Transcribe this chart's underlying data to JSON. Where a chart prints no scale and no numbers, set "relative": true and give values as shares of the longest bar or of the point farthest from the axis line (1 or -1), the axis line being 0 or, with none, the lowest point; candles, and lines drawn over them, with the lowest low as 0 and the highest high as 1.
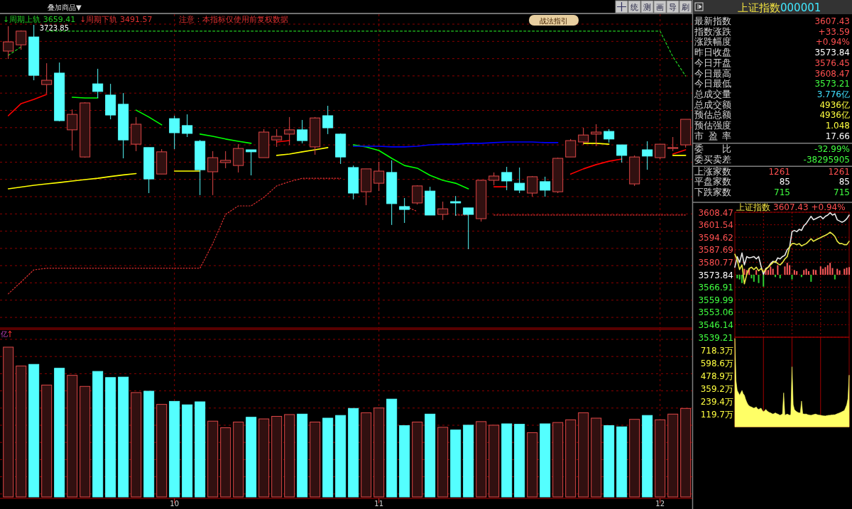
{
  "chart_data": [
    {
      "type": "candlestick",
      "relative": true,
      "grid": true,
      "legend": "top left",
      "tick_labels": false,
      "categories": [
        null,
        null,
        null,
        null,
        null,
        null,
        null,
        null,
        null,
        null,
        null,
        null,
        null,
        "10",
        null,
        null,
        null,
        null,
        null,
        null,
        null,
        null,
        null,
        null,
        null,
        null,
        null,
        null,
        null,
        "11",
        null,
        null,
        null,
        null,
        null,
        null,
        null,
        null,
        null,
        null,
        null,
        null,
        null,
        null,
        null,
        null,
        null,
        null,
        null,
        null,
        null,
        "12",
        null,
        null
      ],
      "ohlc": [
        [
          0.883,
          0.994,
          0.848,
          0.924
        ],
        [
          0.911,
          0.975,
          0.889,
          0.972
        ],
        [
          0.946,
          1,
          0.753,
          0.775
        ],
        [
          0.734,
          0.829,
          0.693,
          0.753
        ],
        [
          0.785,
          0.832,
          0.57,
          0.573
        ],
        [
          0.532,
          0.623,
          0.44,
          0.601
        ],
        [
          0.411,
          0.655,
          0.408,
          0.652
        ],
        [
          0.737,
          0.804,
          0.674,
          0.703
        ],
        [
          0.687,
          0.737,
          0.579,
          0.598
        ],
        [
          0.646,
          0.696,
          0.405,
          0.487
        ],
        [
          0.468,
          0.589,
          0.437,
          0.557
        ],
        [
          0.453,
          0.453,
          0.25,
          0.313
        ],
        [
          0.335,
          0.446,
          0.335,
          0.434
        ],
        [
          0.582,
          0.595,
          0.446,
          0.519
        ],
        [
          0.551,
          0.601,
          0.5,
          0.516
        ],
        [
          0.481,
          0.487,
          0.241,
          0.354
        ],
        [
          0.345,
          0.437,
          0.241,
          0.408
        ],
        [
          0.386,
          0.437,
          0.361,
          0.396
        ],
        [
          0.373,
          0.468,
          0.342,
          0.449
        ],
        [
          0.443,
          0.443,
          0.329,
          0.434
        ],
        [
          0.408,
          0.535,
          0.408,
          0.522
        ],
        [
          0.487,
          0.535,
          0.456,
          0.503
        ],
        [
          0.513,
          0.589,
          0.465,
          0.532
        ],
        [
          0.532,
          0.576,
          0.472,
          0.484
        ],
        [
          0.456,
          0.589,
          0.421,
          0.585
        ],
        [
          0.595,
          0.639,
          0.513,
          0.541
        ],
        [
          0.513,
          0.516,
          0.38,
          0.411
        ],
        [
          0.364,
          0.373,
          0.222,
          0.25
        ],
        [
          0.256,
          0.358,
          0.196,
          0.358
        ],
        [
          0.294,
          0.389,
          0.259,
          0.348
        ],
        [
          0.342,
          0.396,
          0.108,
          0.203
        ],
        [
          0.19,
          0.228,
          0.117,
          0.177
        ],
        [
          0.206,
          0.285,
          0.199,
          0.282
        ],
        [
          0.259,
          0.278,
          0.152,
          0.152
        ],
        [
          0.155,
          0.212,
          0.13,
          0.18
        ],
        [
          0.212,
          0.237,
          0.149,
          0.206
        ],
        [
          0.184,
          0.184,
          0,
          0.155
        ],
        [
          0.136,
          0.31,
          0.123,
          0.307
        ],
        [
          0.307,
          0.342,
          0.285,
          0.326
        ],
        [
          0.342,
          0.367,
          0.263,
          0.304
        ],
        [
          0.294,
          0.364,
          0.25,
          0.263
        ],
        [
          0.25,
          0.326,
          0.234,
          0.323
        ],
        [
          0.301,
          0.323,
          0.234,
          0.263
        ],
        [
          0.256,
          0.408,
          0.25,
          0.405
        ],
        [
          0.411,
          0.491,
          0.411,
          0.484
        ],
        [
          0.478,
          0.541,
          0.465,
          0.509
        ],
        [
          0.513,
          0.557,
          0.459,
          0.522
        ],
        [
          0.525,
          0.535,
          0.475,
          0.491
        ],
        [
          0.465,
          0.465,
          0.386,
          0.418
        ],
        [
          0.291,
          0.418,
          0.282,
          0.411
        ],
        [
          0.443,
          0.481,
          0.354,
          0.415
        ],
        [
          0.408,
          0.468,
          0.402,
          0.468
        ],
        [
          0.449,
          0.5,
          0.437,
          0.453
        ],
        [
          0.465,
          0.579,
          0.453,
          0.579
        ]
      ],
      "colors": [
        "#e04848",
        "#e04848",
        "#54ffff",
        "#e04848",
        "#54ffff",
        "#e04848",
        "#e04848",
        "#54ffff",
        "#54ffff",
        "#54ffff",
        "#e04848",
        "#54ffff",
        "#e04848",
        "#54ffff",
        "#54ffff",
        "#54ffff",
        "#e04848",
        "#e04848",
        "#e04848",
        "#54ffff",
        "#e04848",
        "#e04848",
        "#e04848",
        "#54ffff",
        "#e04848",
        "#54ffff",
        "#54ffff",
        "#54ffff",
        "#e04848",
        "#e04848",
        "#54ffff",
        "#54ffff",
        "#e04848",
        "#54ffff",
        "#e04848",
        "#54ffff",
        "#54ffff",
        "#e04848",
        "#e04848",
        "#54ffff",
        "#54ffff",
        "#e04848",
        "#54ffff",
        "#e04848",
        "#e04848",
        "#e04848",
        "#e04848",
        "#54ffff",
        "#54ffff",
        "#e04848",
        "#54ffff",
        "#e04848",
        "#e04848",
        "#e04848"
      ],
      "series": [
        {
          "type": "line",
          "color": "#00ff00",
          "values": [
            null,
            null,
            null,
            null,
            null,
            0.677,
            0.674,
            0.674,
            null,
            null,
            0.62,
            0.589,
            0.554,
            null,
            null,
            0.513,
            0.503,
            0.491,
            0.481,
            0.472,
            null,
            null,
            null,
            null,
            null,
            null,
            null,
            0.465,
            0.456,
            0.44,
            0.405,
            0.373,
            0.361,
            0.329,
            0.307,
            0.294,
            0.269,
            null,
            null,
            null,
            null,
            null,
            null,
            null,
            null,
            null,
            null,
            null,
            null,
            null,
            null,
            null,
            null,
            null
          ]
        },
        {
          "type": "line",
          "color": "#ff0000",
          "values": [
            0.595,
            0.649,
            0.668,
            0.69,
            null,
            null,
            null,
            null,
            null,
            null,
            null,
            null,
            null,
            null,
            null,
            null,
            null,
            null,
            null,
            null,
            null,
            0.478,
            0.484,
            null,
            null,
            null,
            null,
            null,
            null,
            null,
            null,
            null,
            null,
            null,
            null,
            null,
            null,
            null,
            0.278,
            0.278,
            null,
            null,
            null,
            null,
            0.335,
            0.358,
            0.377,
            0.392,
            0.402,
            null,
            null,
            null,
            0.424,
            0.443
          ]
        },
        {
          "type": "line",
          "color": "#ffff00",
          "values": [
            0.269,
            0.277,
            0.285,
            0.291,
            0.297,
            0.304,
            0.31,
            0.316,
            0.324,
            0.331,
            0.337,
            null,
            null,
            0.348,
            0.348,
            0.348,
            null,
            null,
            null,
            null,
            null,
            0.418,
            0.424,
            0.434,
            0.443,
            0.453,
            null,
            null,
            null,
            null,
            null,
            null,
            null,
            null,
            null,
            null,
            null,
            null,
            null,
            null,
            null,
            null,
            null,
            null,
            null,
            0.472,
            0.472,
            0.468,
            null,
            null,
            null,
            null,
            0.418,
            0.418
          ]
        },
        {
          "type": "line",
          "color": "#0000ff",
          "values": [
            null,
            null,
            null,
            null,
            null,
            null,
            null,
            null,
            null,
            null,
            null,
            null,
            null,
            null,
            null,
            null,
            null,
            null,
            null,
            null,
            null,
            null,
            null,
            null,
            null,
            null,
            null,
            0.459,
            0.459,
            0.459,
            0.456,
            0.456,
            0.459,
            0.465,
            0.468,
            0.468,
            0.472,
            0.472,
            0.475,
            0.478,
            0.478,
            0.478,
            0.475,
            0.475,
            null,
            null,
            null,
            null,
            null,
            null,
            null,
            null,
            null,
            null
          ]
        },
        {
          "type": "line",
          "name": "↓周期上轨 3659.41",
          "color": "#22cc22",
          "line_style": "dashed",
          "values": [
            0.864,
            0.902,
            null,
            0.972,
            0.972,
            0.972,
            0.972,
            0.972,
            0.972,
            0.972,
            0.972,
            0.972,
            0.972,
            0.972,
            0.972,
            0.972,
            0.972,
            0.972,
            0.972,
            0.972,
            0.972,
            0.972,
            0.972,
            0.972,
            0.972,
            0.972,
            0.972,
            0.972,
            0.972,
            0.972,
            0.972,
            0.972,
            0.972,
            0.972,
            0.972,
            0.972,
            0.972,
            0.972,
            0.972,
            0.972,
            0.972,
            0.972,
            0.972,
            0.972,
            0.972,
            0.972,
            0.972,
            0.972,
            0.972,
            0.972,
            0.972,
            0.972,
            0.858,
            0.772
          ]
        },
        {
          "type": "line",
          "name": "↓周期下轨 3491.57",
          "color": "#e03030",
          "line_style": "dotted",
          "values": [
            -0.199,
            -0.146,
            -0.092,
            -0.085,
            -0.085,
            -0.085,
            -0.085,
            -0.085,
            -0.085,
            -0.085,
            -0.085,
            -0.085,
            -0.085,
            -0.085,
            -0.085,
            -0.085,
            0.025,
            0.155,
            0.193,
            0.193,
            0.231,
            0.282,
            0.301,
            0.316,
            0.316,
            0.316,
            0.316,
            null,
            null,
            null,
            null,
            0.193,
            0.168,
            null,
            null,
            0.152,
            0.152,
            null,
            0.152,
            0.152,
            0.152,
            0.152,
            0.152,
            0.152,
            0.152,
            0.152,
            0.152,
            0.152,
            0.152,
            0.152,
            0.152,
            0.152,
            0.152,
            0.152
          ]
        }
      ],
      "annotations": [
        "叠加商品▼",
        "注意：本指标仅使用前复权数据",
        "战法指引",
        "统",
        "测",
        "画",
        "导",
        "刷",
        "3723.85"
      ]
    },
    {
      "type": "bar",
      "relative": true,
      "grid": true,
      "tick_labels": "x",
      "ylabel": "亿",
      "categories": [
        null,
        null,
        null,
        null,
        null,
        null,
        null,
        null,
        null,
        null,
        null,
        null,
        null,
        "10",
        null,
        null,
        null,
        null,
        null,
        null,
        null,
        null,
        null,
        null,
        null,
        null,
        null,
        null,
        null,
        "11",
        null,
        null,
        null,
        null,
        null,
        null,
        null,
        null,
        null,
        null,
        null,
        null,
        null,
        null,
        null,
        null,
        null,
        null,
        null,
        null,
        null,
        "12",
        null,
        null
      ],
      "values": [
        1,
        0.874,
        0.885,
        0.747,
        0.859,
        0.812,
        0.738,
        0.838,
        0.797,
        0.8,
        0.697,
        0.706,
        0.618,
        0.638,
        0.615,
        0.635,
        0.506,
        0.462,
        0.5,
        0.532,
        0.521,
        0.538,
        0.55,
        0.553,
        0.5,
        0.526,
        0.544,
        0.591,
        0.562,
        0.594,
        0.653,
        0.476,
        0.5,
        0.553,
        0.465,
        0.447,
        0.479,
        0.503,
        0.479,
        0.488,
        0.485,
        0.429,
        0.488,
        0.497,
        0.515,
        0.562,
        0.526,
        0.476,
        0.468,
        0.518,
        0.544,
        0.515,
        0.553,
        0.591
      ],
      "colors": [
        "#e04848",
        "#e04848",
        "#54ffff",
        "#e04848",
        "#54ffff",
        "#e04848",
        "#e04848",
        "#54ffff",
        "#54ffff",
        "#54ffff",
        "#e04848",
        "#54ffff",
        "#e04848",
        "#54ffff",
        "#54ffff",
        "#54ffff",
        "#e04848",
        "#e04848",
        "#e04848",
        "#54ffff",
        "#e04848",
        "#e04848",
        "#e04848",
        "#54ffff",
        "#e04848",
        "#54ffff",
        "#54ffff",
        "#54ffff",
        "#e04848",
        "#e04848",
        "#54ffff",
        "#54ffff",
        "#e04848",
        "#54ffff",
        "#e04848",
        "#54ffff",
        "#54ffff",
        "#e04848",
        "#e04848",
        "#54ffff",
        "#54ffff",
        "#e04848",
        "#54ffff",
        "#e04848",
        "#e04848",
        "#e04848",
        "#e04848",
        "#54ffff",
        "#54ffff",
        "#e04848",
        "#54ffff",
        "#e04848",
        "#e04848",
        "#e04848"
      ]
    },
    {
      "type": "other",
      "title": "上证指数",
      "subtitle": "000001",
      "annotations": [
        "最新指数",
        "指数涨跌",
        "涨跌幅度",
        "昨日收盘",
        "今日开盘",
        "今日最高",
        "今日最低",
        "总成交量",
        "总成交额",
        "预估总额",
        "预估强度",
        "市 盈 率",
        "委 比",
        "委买卖差",
        "上涨家数",
        "平盘家数",
        "下跌家数",
        "3607.43",
        "+33.59",
        "+0.94%",
        "3573.84",
        "3576.45",
        "3608.47",
        "3573.21",
        "3.776亿",
        "4936亿",
        "4936亿",
        "1.048",
        "17.66",
        "-32.99%",
        "-38295905",
        "1261",
        "85",
        "715",
        "1261",
        "85",
        "715"
      ],
      "colors": [
        "#d8d8d8",
        "#d8d8d8",
        "#d8d8d8",
        "#d8d8d8",
        "#d8d8d8",
        "#d8d8d8",
        "#d8d8d8",
        "#d8d8d8",
        "#d8d8d8",
        "#d8d8d8",
        "#d8d8d8",
        "#d8d8d8",
        "#d8d8d8",
        "#d8d8d8",
        "#d8d8d8",
        "#d8d8d8",
        "#d8d8d8",
        "#ff5050",
        "#ff5050",
        "#ff5050",
        "#ffffff",
        "#ff5050",
        "#ff5050",
        "#40ff40",
        "#40e0ff",
        "#ffff40",
        "#ffff40",
        "#ffff40",
        "#ffffff",
        "#40ff40",
        "#40ff40",
        "#ff5050",
        "#ffffff",
        "#40ff40",
        "#ff5050",
        "#ffffff",
        "#40ff40"
      ]
    },
    {
      "type": "line",
      "title": "上证指数",
      "subtitle": "3607.43 +0.94%",
      "grid": true,
      "tick_labels": "y",
      "categories": [
        null,
        null,
        null,
        null,
        null,
        null,
        null,
        null,
        null,
        null,
        null,
        null,
        null,
        null,
        null,
        null,
        null,
        null,
        null,
        null,
        null,
        null,
        null,
        null,
        null,
        null,
        null,
        null,
        null,
        null,
        null,
        null,
        null,
        null,
        null,
        null,
        null,
        null,
        null,
        null,
        null,
        null,
        null,
        null,
        null,
        null,
        null,
        null,
        null
      ],
      "ylim": [
        3539.21,
        3608.47
      ],
      "yticks": [
        3608.47,
        3601.54,
        3594.62,
        3587.69,
        3580.77,
        3573.84,
        3566.91,
        3559.99,
        3553.06,
        3546.14,
        3539.21
      ],
      "series": [
        {
          "type": "bar",
          "base": [
            null,
            3573.84,
            3573.84,
            3573.84,
            3573.84,
            3573.84,
            3573.84,
            3573.84,
            3573.84,
            3573.84,
            3573.84,
            null,
            3573.84,
            3573.84,
            3573.84,
            3573.84,
            3573.84,
            3573.84,
            3573.84,
            3573.84,
            null,
            3573.84,
            3573.84,
            3573.84,
            3573.84,
            3573.84,
            3573.84,
            null,
            3573.84,
            3573.84,
            3573.84,
            3573.84,
            3573.84,
            3573.84,
            3573.84,
            null,
            3573.84,
            3573.84,
            3573.84,
            3573.84,
            3573.84,
            3573.84,
            3573.84,
            3573.84,
            3573.84,
            null,
            3573.84,
            3573.84,
            3573.84
          ],
          "values": [
            null,
            -2.0,
            -2.6,
            -4.6,
            3.3,
            2.6,
            3.3,
            -2.0,
            -3.9,
            2.6,
            -4.6,
            null,
            -6.6,
            3.3,
            2.6,
            4.6,
            3.3,
            -1.3,
            5.3,
            -2.0,
            null,
            4.6,
            6.6,
            5.3,
            -2.6,
            2.6,
            2.0,
            null,
            -1.3,
            2.6,
            3.3,
            2.0,
            -3.9,
            2.9,
            2.6,
            null,
            4.6,
            3.3,
            4.2,
            5.3,
            6.6,
            3.7,
            -2.6,
            3.3,
            2.4,
            null,
            3.3,
            3.9,
            4.2
          ],
          "colors": [
            null,
            "#30d030",
            "#30d030",
            "#30d030",
            "#ff5a5a",
            "#ff5a5a",
            "#ff5a5a",
            "#30d030",
            "#30d030",
            "#ff5a5a",
            "#30d030",
            null,
            "#30d030",
            "#ff5a5a",
            "#ff5a5a",
            "#ff5a5a",
            "#ff5a5a",
            "#30d030",
            "#ff5a5a",
            "#30d030",
            null,
            "#ff5a5a",
            "#ff5a5a",
            "#ff5a5a",
            "#30d030",
            "#ff5a5a",
            "#ff5a5a",
            null,
            "#30d030",
            "#ff5a5a",
            "#ff5a5a",
            "#ff5a5a",
            "#30d030",
            "#ff5a5a",
            "#ff5a5a",
            null,
            "#ff5a5a",
            "#ff5a5a",
            "#ff5a5a",
            "#ff5a5a",
            "#ff5a5a",
            "#ff5a5a",
            "#30d030",
            "#ff5a5a",
            "#ff5a5a",
            null,
            "#ff5a5a",
            "#ff5a5a",
            "#ff5a5a"
          ]
        },
        {
          "type": "line",
          "color": "#e8e8e8",
          "values": [
            3578.0,
            3583.9,
            3580.6,
            3585.9,
            3579.3,
            3583.9,
            3583.2,
            3583.5,
            3583.9,
            3582.6,
            3583.9,
            3578.6,
            3574.0,
            3577.3,
            3578.0,
            3580.0,
            3581.3,
            3580.6,
            3583.2,
            3582.6,
            3583.9,
            3584.6,
            3587.8,
            3589.2,
            3597.7,
            3598.4,
            3597.7,
            3599.0,
            3598.4,
            3601.0,
            3602.3,
            3604.3,
            3606.2,
            3604.3,
            3604.9,
            3605.6,
            3606.2,
            3604.9,
            3606.2,
            3606.9,
            3608.2,
            3606.9,
            3607.6,
            3604.3,
            3603.6,
            3603.0,
            3603.6,
            3604.9,
            3606.9
          ]
        },
        {
          "type": "line",
          "color": "#e8e840",
          "values": [
            3585.2,
            3581.9,
            3576.7,
            3579.3,
            3568.8,
            3574.0,
            3577.3,
            3578.0,
            3576.7,
            3578.0,
            3576.0,
            3577.3,
            3575.4,
            3576.7,
            3578.0,
            3579.3,
            3580.6,
            3581.3,
            3580.0,
            3579.3,
            3580.6,
            3582.6,
            3583.9,
            3589.2,
            3591.1,
            3591.1,
            3590.5,
            3591.1,
            3589.8,
            3590.5,
            3591.1,
            3592.4,
            3593.8,
            3592.4,
            3593.1,
            3593.8,
            3594.4,
            3595.1,
            3595.7,
            3596.4,
            3597.4,
            3596.4,
            3595.1,
            3592.4,
            3591.1,
            3591.1,
            3590.5,
            3590.5,
            3592.4
          ]
        }
      ]
    },
    {
      "type": "area",
      "grid": "x",
      "tick_labels": "y",
      "categories": [
        null,
        null,
        null,
        null,
        null,
        null,
        null,
        null,
        null,
        null,
        null,
        null,
        null,
        null,
        null,
        null,
        null,
        null,
        null,
        null,
        null,
        null,
        null,
        null,
        null,
        null,
        null,
        null,
        null,
        null,
        null,
        null,
        null,
        null,
        null,
        null,
        null,
        null,
        null,
        null,
        null,
        null,
        null,
        null,
        null,
        null,
        null,
        null,
        null,
        null,
        null,
        null,
        null,
        null,
        null,
        null,
        null,
        null,
        null,
        null,
        null,
        null,
        null,
        null,
        null,
        null,
        null,
        null,
        null,
        null,
        null,
        null,
        null,
        null,
        null,
        null,
        null,
        null,
        null,
        null,
        null,
        null,
        null,
        null,
        null,
        null,
        null,
        null,
        null,
        null,
        null,
        null,
        null,
        null,
        null,
        null,
        null
      ],
      "ylim": [
        0,
        840
      ],
      "yticks": [
        {
          "value": 718.3,
          "label": "718.3万"
        },
        {
          "value": 598.6,
          "label": "598.6万"
        },
        {
          "value": 478.9,
          "label": "478.9万"
        },
        {
          "value": 359.2,
          "label": "359.2万"
        },
        {
          "value": 239.4,
          "label": "239.4万"
        },
        {
          "value": 119.7,
          "label": "119.7万"
        }
      ],
      "series": [
        {
          "color": "#ffff66",
          "values": [
            829,
            430,
            341,
            320,
            297,
            320,
            341,
            310,
            297,
            260,
            231,
            210,
            197,
            190,
            186,
            180,
            175,
            180,
            186,
            170,
            164,
            170,
            175,
            155,
            142,
            150,
            164,
            150,
            142,
            135,
            131,
            125,
            120,
            125,
            131,
            125,
            120,
            115,
            109,
            115,
            120,
            319,
            109,
            115,
            120,
            115,
            109,
            115,
            563,
            208,
            164,
            150,
            142,
            135,
            131,
            131,
            242,
            124,
            120,
            120,
            120,
            115,
            112,
            110,
            109,
            112,
            115,
            118,
            120,
            115,
            112,
            110,
            109,
            106,
            104,
            103,
            102,
            105,
            107,
            109,
            109,
            111,
            112,
            113,
            113,
            118,
            123,
            127,
            131,
            137,
            142,
            148,
            153,
            180,
            208,
            264,
            485
          ]
        }
      ]
    }
  ]
}
